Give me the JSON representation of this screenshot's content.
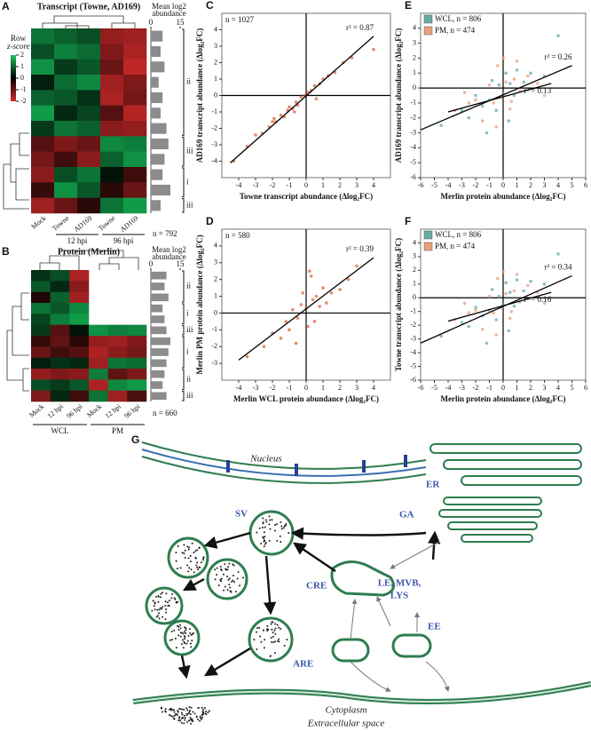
{
  "panel_a": {
    "label": "A",
    "title": "Transcript (Towne, AD169)",
    "colorbar_title": [
      "Row",
      "z-score"
    ],
    "colorbar_ticks": [
      2,
      1,
      0,
      -1,
      -2
    ],
    "abundance_title": [
      "Mean log2",
      "abundance"
    ],
    "abundance_ticks": [
      0,
      15
    ],
    "columns": [
      "Mock",
      "Towne",
      "AD169",
      "Towne",
      "AD169"
    ],
    "groups": [
      {
        "label": "12 hpi",
        "cols": [
          1,
          2
        ]
      },
      {
        "label": "96 hpi",
        "cols": [
          3,
          4
        ]
      }
    ],
    "clusters": [
      {
        "label": "ii",
        "rows": [
          0,
          6
        ]
      },
      {
        "label": "iii",
        "rows": [
          7,
          8
        ]
      },
      {
        "label": "i",
        "rows": [
          9,
          10
        ]
      },
      {
        "label": "iii",
        "rows": [
          11,
          11
        ]
      }
    ],
    "n": "n = 792",
    "matrix": [
      [
        1.2,
        1.0,
        0.8,
        -1.4,
        -1.5
      ],
      [
        0.8,
        1.3,
        1.1,
        -1.2,
        -1.6
      ],
      [
        1.5,
        0.6,
        0.9,
        -1.0,
        -1.8
      ],
      [
        0.3,
        1.1,
        1.4,
        -1.5,
        -1.2
      ],
      [
        1.0,
        0.9,
        0.5,
        -1.6,
        -1.1
      ],
      [
        1.6,
        0.4,
        0.7,
        -0.8,
        -1.7
      ],
      [
        0.6,
        1.2,
        1.0,
        -1.3,
        -1.4
      ],
      [
        -0.8,
        -1.2,
        -1.0,
        1.4,
        1.3
      ],
      [
        -1.1,
        -0.6,
        -1.3,
        1.0,
        1.5
      ],
      [
        -1.3,
        0.8,
        1.2,
        0.2,
        -0.6
      ],
      [
        -0.5,
        1.5,
        0.9,
        -0.4,
        -1.0
      ],
      [
        -1.5,
        -1.0,
        -0.4,
        1.2,
        1.6
      ]
    ],
    "abundance": [
      6,
      5,
      7,
      4,
      6,
      5,
      8,
      9,
      7,
      6,
      10,
      5
    ]
  },
  "panel_b": {
    "label": "B",
    "title": "Protein (Merlin)",
    "abundance_title": [
      "Mean log2",
      "abundance"
    ],
    "abundance_ticks": [
      0,
      15
    ],
    "columns": [
      "Mock",
      "12 hpi",
      "96 hpi",
      "Mock",
      "12 hpi",
      "96 hpi"
    ],
    "groups": [
      {
        "label": "WCL",
        "cols": [
          0,
          2
        ]
      },
      {
        "label": "PM",
        "cols": [
          3,
          5
        ]
      }
    ],
    "clusters": [
      {
        "label": "ii",
        "rows": [
          0,
          2
        ]
      },
      {
        "label": "i",
        "rows": [
          3,
          4
        ]
      },
      {
        "label": "iii",
        "rows": [
          5,
          5
        ]
      },
      {
        "label": "i",
        "rows": [
          6,
          8
        ]
      },
      {
        "label": "ii",
        "rows": [
          9,
          10
        ]
      },
      {
        "label": "iii",
        "rows": [
          11,
          11
        ]
      }
    ],
    "n": "n = 660",
    "matrix": [
      [
        0.5,
        0.8,
        -1.6,
        null,
        null,
        null
      ],
      [
        0.9,
        0.4,
        -1.3,
        null,
        null,
        null
      ],
      [
        -0.3,
        1.0,
        -1.5,
        null,
        null,
        null
      ],
      [
        1.2,
        0.9,
        1.4,
        null,
        null,
        null
      ],
      [
        0.7,
        1.3,
        1.6,
        null,
        null,
        null
      ],
      [
        0.6,
        -0.8,
        0.2,
        1.5,
        1.3,
        1.4
      ],
      [
        -0.5,
        -0.9,
        -0.4,
        -1.4,
        -1.5,
        -1.2
      ],
      [
        -1.0,
        -0.6,
        -0.8,
        -1.6,
        -1.3,
        -1.1
      ],
      [
        0.3,
        0.5,
        0.4,
        -1.5,
        1.2,
        1.1
      ],
      [
        -1.4,
        -1.2,
        -1.3,
        1.3,
        -0.9,
        -1.2
      ],
      [
        0.8,
        0.6,
        0.9,
        -1.6,
        1.4,
        1.6
      ],
      [
        -1.2,
        0.4,
        -0.6,
        1.2,
        -1.5,
        -0.7
      ]
    ],
    "abundance": [
      8,
      7,
      9,
      6,
      7,
      8,
      10,
      9,
      8,
      7,
      6,
      8
    ]
  },
  "chart_data": [
    {
      "type": "scatter",
      "label": "C",
      "n": "n = 1027",
      "xlabel": "Towne transcript abundance (Δlog₂FC)",
      "ylabel": "AD169 transcript abundance (Δlog₂FC)",
      "color": "#d9653b",
      "x": [
        -4.3,
        -3.5,
        -3,
        -2.6,
        -2.2,
        -2,
        -1.8,
        -1.5,
        -1.3,
        -1.1,
        -1,
        -0.8,
        -0.6,
        -0.5,
        -0.3,
        -0.1,
        0.1,
        0.3,
        0.5,
        0.8,
        1,
        1.3,
        1.7,
        2.2,
        2.7,
        0.6,
        -0.7,
        -1.9,
        4
      ],
      "values": [
        -4,
        -3.1,
        -2.4,
        -2.3,
        -1.9,
        -1.6,
        -1.6,
        -1.2,
        -1.3,
        -0.9,
        -0.7,
        -0.8,
        -0.4,
        -0.6,
        -0.1,
        0,
        0.2,
        0.3,
        0.6,
        0.7,
        1,
        1.2,
        1.4,
        2,
        2.3,
        -0.2,
        -1,
        -1.4,
        2.8
      ],
      "fits": [
        {
          "label": "r² = 0.87",
          "x": [
            -4.5,
            4
          ],
          "values": [
            -4.1,
            3.6
          ]
        }
      ],
      "xlim": [
        -5,
        5
      ],
      "xticks": [
        -4,
        -3,
        -2,
        -1,
        0,
        1,
        2,
        3,
        4
      ],
      "ylim": [
        -5,
        5
      ],
      "yticks": [
        -4,
        -3,
        -2,
        -1,
        0,
        1,
        2,
        3,
        4
      ]
    },
    {
      "type": "scatter",
      "label": "D",
      "n": "n = 580",
      "xlabel": "Merlin WCL protein abundance (Δlog₂FC)",
      "ylabel": "Merlin PM protein abundance (Δlog₂FC)",
      "color": "#d9653b",
      "x": [
        -3.5,
        -2.5,
        -2,
        -1.5,
        -1.2,
        -1,
        -0.8,
        -0.5,
        -0.3,
        -0.2,
        0,
        0.1,
        0.2,
        0.4,
        0.6,
        0.8,
        1,
        1.2,
        1.5,
        2,
        2.5,
        3,
        -0.6,
        0.3,
        0.5
      ],
      "values": [
        -2.6,
        -2,
        -1.2,
        -1.5,
        -0.5,
        -1,
        0.2,
        -0.3,
        0.5,
        1.2,
        0.3,
        -0.8,
        2.5,
        0.8,
        1,
        0.4,
        1.5,
        0.6,
        1.2,
        1.4,
        2,
        2.8,
        -1.8,
        2.2,
        -0.5
      ],
      "fits": [
        {
          "label": "r² = 0.39",
          "x": [
            -4,
            4
          ],
          "values": [
            -2.8,
            3.3
          ]
        }
      ],
      "xlim": [
        -5,
        5
      ],
      "xticks": [
        -4,
        -3,
        -2,
        -1,
        0,
        1,
        2,
        3,
        4
      ],
      "ylim": [
        -4,
        5
      ],
      "yticks": [
        -3,
        -2,
        -1,
        0,
        1,
        2,
        3,
        4
      ]
    },
    {
      "type": "scatter",
      "label": "E",
      "xlabel": "Merlin protein abundance (Δlog₂FC)",
      "ylabel": "AD169 transcript abundance (Δlog₂FC)",
      "series": [
        {
          "name": "WCL, n = 806",
          "color": "#6aa9a6",
          "x": [
            -4.5,
            -3,
            -2.5,
            -2,
            -1.5,
            -1,
            -0.8,
            -0.5,
            -0.3,
            0,
            0.2,
            0.5,
            0.8,
            1,
            1.5,
            2,
            3,
            4,
            -1.2,
            0.4
          ],
          "values": [
            -2.5,
            -1.5,
            -2,
            -0.5,
            -1.2,
            -0.8,
            0.5,
            -1.5,
            0.2,
            -0.4,
            1,
            0.3,
            -0.5,
            1.2,
            0.4,
            1,
            0.8,
            3.5,
            -3,
            -2.2
          ]
        },
        {
          "name": "PM, n = 474",
          "color": "#e8a07c",
          "x": [
            -3.5,
            -2.5,
            -2,
            -1.5,
            -1,
            -0.7,
            -0.4,
            -0.1,
            0.2,
            0.5,
            0.8,
            1.2,
            1.8,
            2.5,
            3,
            -0.5,
            0,
            1,
            -2.8,
            0.6
          ],
          "values": [
            -1.5,
            -1,
            -0.8,
            -2.2,
            0.2,
            -1,
            1.5,
            -0.6,
            0.4,
            -1.4,
            0.6,
            -0.2,
            0.8,
            0.3,
            -0.5,
            -2.6,
            2,
            1.8,
            -0.3,
            -0.9
          ]
        }
      ],
      "fits": [
        {
          "label": "r² = 0.26",
          "x": [
            -6,
            5
          ],
          "values": [
            -2.8,
            1.5
          ]
        },
        {
          "label": "r² = 0.13",
          "x": [
            -4,
            3.5
          ],
          "values": [
            -1.6,
            0.3
          ]
        }
      ],
      "xlim": [
        -6,
        6
      ],
      "xticks": [
        -6,
        -5,
        -4,
        -3,
        -2,
        -1,
        0,
        1,
        2,
        3,
        4,
        5,
        6
      ],
      "ylim": [
        -6,
        5
      ],
      "yticks": [
        -6,
        -5,
        -4,
        -3,
        -2,
        -1,
        0,
        1,
        2,
        3,
        4
      ]
    },
    {
      "type": "scatter",
      "label": "F",
      "xlabel": "Merlin protein abundance (Δlog₂FC)",
      "ylabel": "Towne transcript abundance (Δlog₂FC)",
      "series": [
        {
          "name": "WCL, n = 806",
          "color": "#6aa9a6",
          "x": [
            -4.5,
            -3,
            -2.5,
            -2,
            -1.5,
            -1,
            -0.8,
            -0.5,
            -0.3,
            0,
            0.2,
            0.5,
            0.8,
            1,
            1.5,
            2,
            3,
            4,
            -1.2,
            0.4
          ],
          "values": [
            -2.8,
            -1.8,
            -2.1,
            -0.7,
            -1.3,
            -0.9,
            0.6,
            -1.6,
            0.1,
            -0.5,
            1.1,
            0.4,
            -0.6,
            1.3,
            0.5,
            1.2,
            1,
            3.2,
            -3.3,
            -2.4
          ]
        },
        {
          "name": "PM, n = 474",
          "color": "#e8a07c",
          "x": [
            -3.5,
            -2.5,
            -2,
            -1.5,
            -1,
            -0.7,
            -0.4,
            -0.1,
            0.2,
            0.5,
            0.8,
            1.2,
            1.8,
            2.5,
            3,
            -0.5,
            0,
            1,
            -2.8,
            0.6
          ],
          "values": [
            -1.6,
            -1.1,
            -0.9,
            -2.3,
            0.1,
            -1.1,
            1.4,
            -0.7,
            0.3,
            -1.5,
            0.5,
            -0.3,
            0.9,
            0.4,
            -0.4,
            -2.7,
            1.9,
            1.7,
            -0.4,
            -1
          ]
        }
      ],
      "fits": [
        {
          "label": "r² = 0.34",
          "x": [
            -6,
            5
          ],
          "values": [
            -3.3,
            1.6
          ]
        },
        {
          "label": "r² = 0.16",
          "x": [
            -4,
            3.5
          ],
          "values": [
            -1.7,
            0.4
          ]
        }
      ],
      "xlim": [
        -6,
        6
      ],
      "xticks": [
        -6,
        -5,
        -4,
        -3,
        -2,
        -1,
        0,
        1,
        2,
        3,
        4,
        5,
        6
      ],
      "ylim": [
        -6,
        5
      ],
      "yticks": [
        -6,
        -5,
        -4,
        -3,
        -2,
        -1,
        0,
        1,
        2,
        3,
        4
      ]
    }
  ],
  "diagram": {
    "label": "G",
    "nucleus": "Nucleus",
    "er": "ER",
    "ga": "GA",
    "sv": "SV",
    "cre": "CRE",
    "le_mvb": "LE, MVB,",
    "lys": "LYS",
    "ee": "EE",
    "are": "ARE",
    "cytoplasm": "Cytoplasm",
    "extracellular": "Extracellular space"
  }
}
